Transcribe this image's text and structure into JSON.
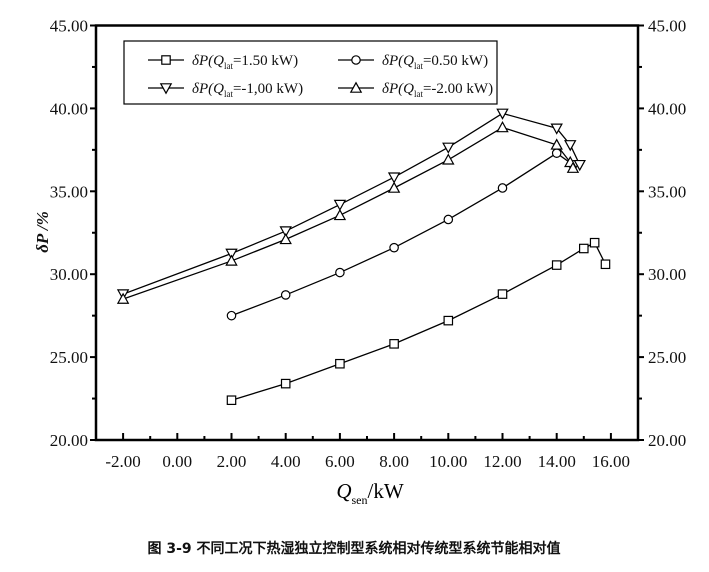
{
  "chart_data": {
    "type": "line",
    "title": "",
    "caption": "图 3-9 不同工况下热湿独立控制型系统相对传统型系统节能相对值",
    "xlabel": {
      "main": "Q",
      "sub": "sen",
      "unit": "/kW"
    },
    "ylabel": "δP /%",
    "xlim": [
      -3,
      17
    ],
    "ylim": [
      20,
      45
    ],
    "x_ticks": [
      -2,
      0,
      2,
      4,
      6,
      8,
      10,
      12,
      14,
      16
    ],
    "x_tick_labels": [
      "-2.00",
      "0.00",
      "2.00",
      "4.00",
      "6.00",
      "8.00",
      "10.00",
      "12.00",
      "14.00",
      "16.00"
    ],
    "y_ticks": [
      20,
      25,
      30,
      35,
      40,
      45
    ],
    "y_tick_labels": [
      "20.00",
      "25.00",
      "30.00",
      "35.00",
      "40.00",
      "45.00"
    ],
    "right_axis_mirrored": true,
    "grid": false,
    "legend_position": "top-left",
    "series": [
      {
        "name": "δP(Qlat=1.50 kW)",
        "label_parts": [
          "δP(Q",
          "lat",
          "=1.50 kW)"
        ],
        "marker": "square",
        "x": [
          2,
          4,
          6,
          8,
          10,
          12,
          14,
          15.0,
          15.4,
          15.8
        ],
        "y": [
          22.4,
          23.4,
          24.6,
          25.8,
          27.2,
          28.8,
          30.55,
          31.55,
          31.9,
          30.6
        ]
      },
      {
        "name": "δP(Qlat=0.50 kW)",
        "label_parts": [
          "δP(Q",
          "lat",
          "=0.50 kW)"
        ],
        "marker": "circle",
        "x": [
          2,
          4,
          6,
          8,
          10,
          12,
          14,
          14.6
        ],
        "y": [
          27.5,
          28.75,
          30.1,
          31.6,
          33.3,
          35.2,
          37.3,
          36.6
        ]
      },
      {
        "name": "δP(Qlat=-1,00 kW)",
        "label_parts": [
          "δP(Q",
          "lat",
          "=-1,00 kW)"
        ],
        "marker": "triangle-down",
        "x": [
          -2,
          2,
          4,
          6,
          8,
          10,
          12,
          14,
          14.5,
          14.85
        ],
        "y": [
          28.8,
          31.25,
          32.6,
          34.2,
          35.85,
          37.65,
          39.7,
          38.8,
          37.8,
          36.6
        ]
      },
      {
        "name": "δP(Qlat=-2.00 kW)",
        "label_parts": [
          "δP(Q",
          "lat",
          "=-2.00 kW)"
        ],
        "marker": "triangle-up",
        "x": [
          -2,
          2,
          4,
          6,
          8,
          10,
          12,
          14,
          14.5,
          14.6
        ],
        "y": [
          28.5,
          30.8,
          32.1,
          33.55,
          35.2,
          36.9,
          38.85,
          37.8,
          36.75,
          36.4
        ]
      }
    ]
  }
}
